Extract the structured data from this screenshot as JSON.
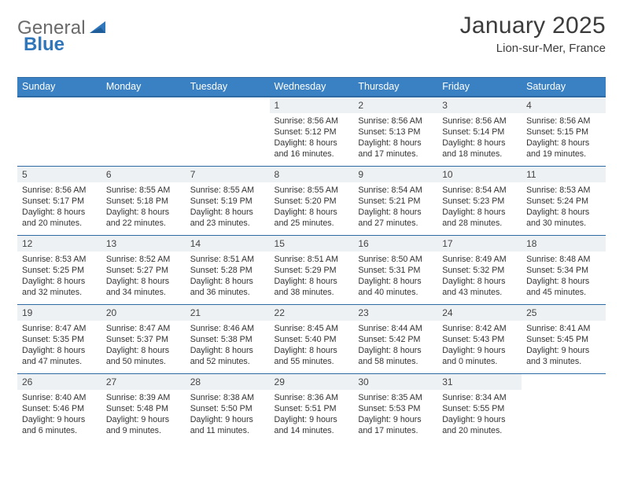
{
  "brand": {
    "word1": "General",
    "word2": "Blue"
  },
  "title": "January 2025",
  "subtitle": "Lion-sur-Mer, France",
  "colors": {
    "header_bg": "#3a81c4",
    "header_border": "#2e6aa3",
    "daynum_bg": "#eef1f3",
    "text": "#333333",
    "title_text": "#3c3c3c",
    "logo_gray": "#6a6a6a",
    "logo_blue": "#2f76bb",
    "page_bg": "#ffffff"
  },
  "typography": {
    "title_fontsize": 30,
    "subtitle_fontsize": 15,
    "day_header_fontsize": 12.5,
    "daynum_fontsize": 12,
    "details_fontsize": 10.7
  },
  "day_headers": [
    "Sunday",
    "Monday",
    "Tuesday",
    "Wednesday",
    "Thursday",
    "Friday",
    "Saturday"
  ],
  "weeks": [
    [
      null,
      null,
      null,
      {
        "n": "1",
        "sunrise": "8:56 AM",
        "sunset": "5:12 PM",
        "dl": "8 hours and 16 minutes."
      },
      {
        "n": "2",
        "sunrise": "8:56 AM",
        "sunset": "5:13 PM",
        "dl": "8 hours and 17 minutes."
      },
      {
        "n": "3",
        "sunrise": "8:56 AM",
        "sunset": "5:14 PM",
        "dl": "8 hours and 18 minutes."
      },
      {
        "n": "4",
        "sunrise": "8:56 AM",
        "sunset": "5:15 PM",
        "dl": "8 hours and 19 minutes."
      }
    ],
    [
      {
        "n": "5",
        "sunrise": "8:56 AM",
        "sunset": "5:17 PM",
        "dl": "8 hours and 20 minutes."
      },
      {
        "n": "6",
        "sunrise": "8:55 AM",
        "sunset": "5:18 PM",
        "dl": "8 hours and 22 minutes."
      },
      {
        "n": "7",
        "sunrise": "8:55 AM",
        "sunset": "5:19 PM",
        "dl": "8 hours and 23 minutes."
      },
      {
        "n": "8",
        "sunrise": "8:55 AM",
        "sunset": "5:20 PM",
        "dl": "8 hours and 25 minutes."
      },
      {
        "n": "9",
        "sunrise": "8:54 AM",
        "sunset": "5:21 PM",
        "dl": "8 hours and 27 minutes."
      },
      {
        "n": "10",
        "sunrise": "8:54 AM",
        "sunset": "5:23 PM",
        "dl": "8 hours and 28 minutes."
      },
      {
        "n": "11",
        "sunrise": "8:53 AM",
        "sunset": "5:24 PM",
        "dl": "8 hours and 30 minutes."
      }
    ],
    [
      {
        "n": "12",
        "sunrise": "8:53 AM",
        "sunset": "5:25 PM",
        "dl": "8 hours and 32 minutes."
      },
      {
        "n": "13",
        "sunrise": "8:52 AM",
        "sunset": "5:27 PM",
        "dl": "8 hours and 34 minutes."
      },
      {
        "n": "14",
        "sunrise": "8:51 AM",
        "sunset": "5:28 PM",
        "dl": "8 hours and 36 minutes."
      },
      {
        "n": "15",
        "sunrise": "8:51 AM",
        "sunset": "5:29 PM",
        "dl": "8 hours and 38 minutes."
      },
      {
        "n": "16",
        "sunrise": "8:50 AM",
        "sunset": "5:31 PM",
        "dl": "8 hours and 40 minutes."
      },
      {
        "n": "17",
        "sunrise": "8:49 AM",
        "sunset": "5:32 PM",
        "dl": "8 hours and 43 minutes."
      },
      {
        "n": "18",
        "sunrise": "8:48 AM",
        "sunset": "5:34 PM",
        "dl": "8 hours and 45 minutes."
      }
    ],
    [
      {
        "n": "19",
        "sunrise": "8:47 AM",
        "sunset": "5:35 PM",
        "dl": "8 hours and 47 minutes."
      },
      {
        "n": "20",
        "sunrise": "8:47 AM",
        "sunset": "5:37 PM",
        "dl": "8 hours and 50 minutes."
      },
      {
        "n": "21",
        "sunrise": "8:46 AM",
        "sunset": "5:38 PM",
        "dl": "8 hours and 52 minutes."
      },
      {
        "n": "22",
        "sunrise": "8:45 AM",
        "sunset": "5:40 PM",
        "dl": "8 hours and 55 minutes."
      },
      {
        "n": "23",
        "sunrise": "8:44 AM",
        "sunset": "5:42 PM",
        "dl": "8 hours and 58 minutes."
      },
      {
        "n": "24",
        "sunrise": "8:42 AM",
        "sunset": "5:43 PM",
        "dl": "9 hours and 0 minutes."
      },
      {
        "n": "25",
        "sunrise": "8:41 AM",
        "sunset": "5:45 PM",
        "dl": "9 hours and 3 minutes."
      }
    ],
    [
      {
        "n": "26",
        "sunrise": "8:40 AM",
        "sunset": "5:46 PM",
        "dl": "9 hours and 6 minutes."
      },
      {
        "n": "27",
        "sunrise": "8:39 AM",
        "sunset": "5:48 PM",
        "dl": "9 hours and 9 minutes."
      },
      {
        "n": "28",
        "sunrise": "8:38 AM",
        "sunset": "5:50 PM",
        "dl": "9 hours and 11 minutes."
      },
      {
        "n": "29",
        "sunrise": "8:36 AM",
        "sunset": "5:51 PM",
        "dl": "9 hours and 14 minutes."
      },
      {
        "n": "30",
        "sunrise": "8:35 AM",
        "sunset": "5:53 PM",
        "dl": "9 hours and 17 minutes."
      },
      {
        "n": "31",
        "sunrise": "8:34 AM",
        "sunset": "5:55 PM",
        "dl": "9 hours and 20 minutes."
      },
      null
    ]
  ],
  "labels": {
    "sunrise": "Sunrise: ",
    "sunset": "Sunset: ",
    "daylight": "Daylight: "
  }
}
